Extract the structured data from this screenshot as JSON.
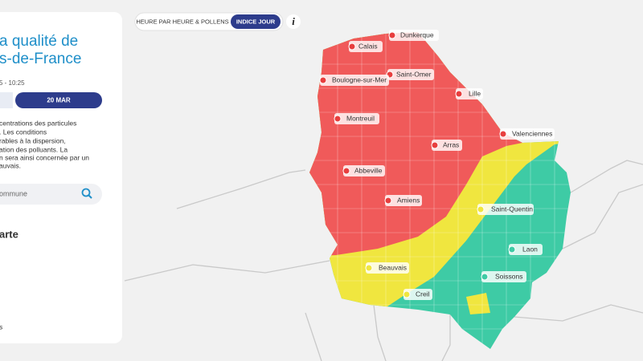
{
  "panel": {
    "title_lines": [
      "a qualité de",
      "s-de-France"
    ],
    "time": "5 - 10:25",
    "date_button": "20 MAR",
    "description_lines": [
      "centrations des particules",
      ". Les conditions",
      "rables à la dispersion,",
      "ation des polluants. La",
      "n sera ainsi concernée par un",
      "auvais."
    ],
    "search_placeholder": "ommune",
    "section_title": "arte",
    "footer_text": "s"
  },
  "toggle": {
    "options": [
      "HEURE PAR HEURE & POLLENS",
      "INDICE JOUR"
    ]
  },
  "map": {
    "cities": [
      "Dunkerque",
      "Calais",
      "Saint-Omer",
      "Boulogne-sur-Mer",
      "Lille",
      "Montreuil",
      "Valenciennes",
      "Arras",
      "Abbeville",
      "Amiens",
      "Saint-Quentin",
      "Beauvais",
      "Laon",
      "Soissons",
      "Creil"
    ]
  }
}
